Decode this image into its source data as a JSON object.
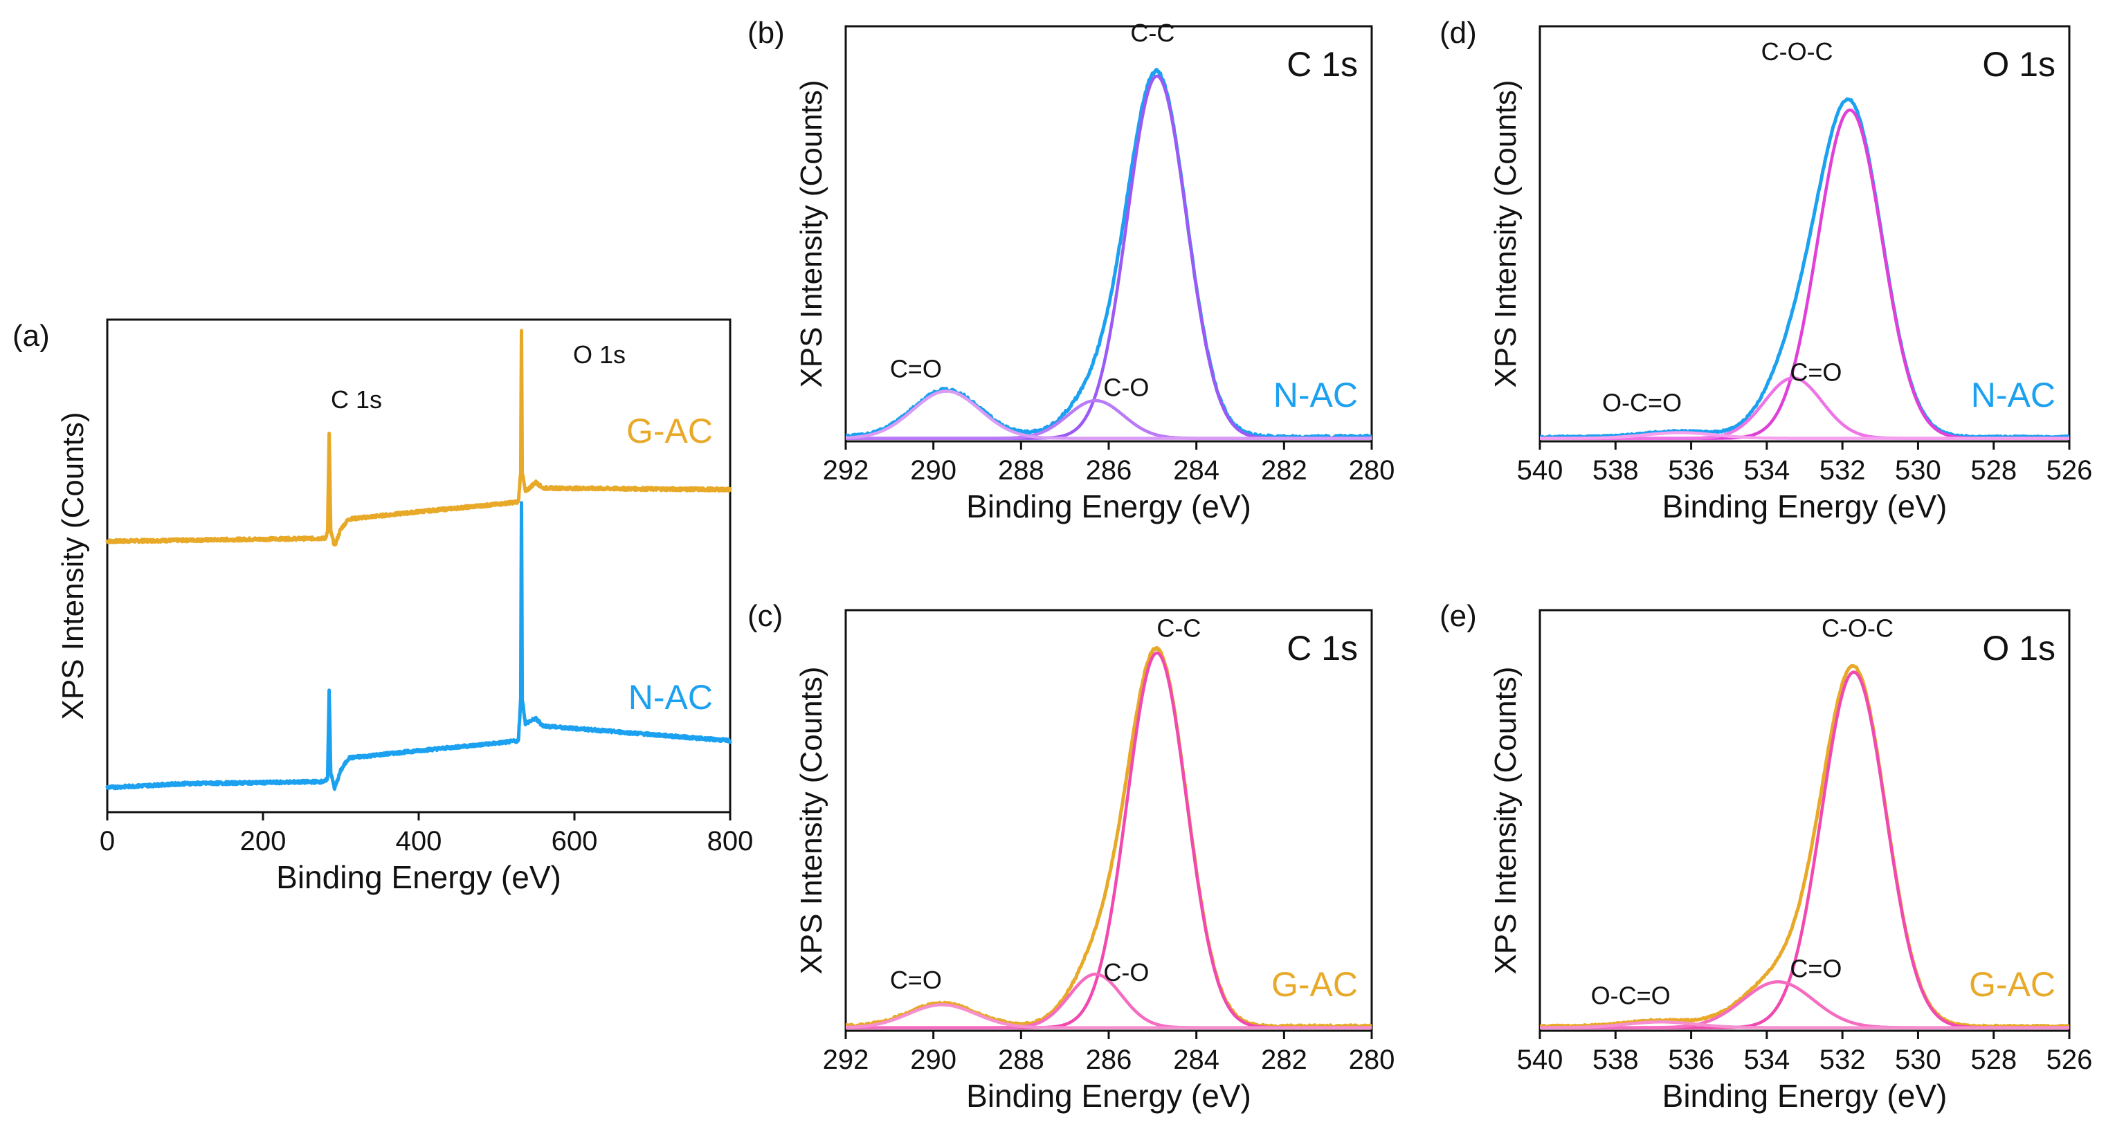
{
  "figure": {
    "type": "xps_multi_panel"
  },
  "chart_data": [
    {
      "panel": "(a)",
      "type": "line",
      "title": "",
      "xlabel": "Binding Energy (eV)",
      "ylabel": "XPS Intensity (Counts)",
      "xlim": [
        0,
        800
      ],
      "x_reversed": false,
      "ylim": [
        0,
        1
      ],
      "x_ticks": [
        0,
        200,
        400,
        600,
        800
      ],
      "peak_labels": [
        {
          "text": "C 1s",
          "x": 285,
          "y": 0.71
        },
        {
          "text": "O 1s",
          "x": 532,
          "y": 0.88
        }
      ],
      "series": [
        {
          "name": "G-AC",
          "color": "#E8A928",
          "offset": 0.55,
          "base": [
            [
              0,
              0
            ],
            [
              280,
              0.006
            ],
            [
              283,
              0.02
            ],
            [
              285,
              0.22
            ],
            [
              287,
              0.02
            ],
            [
              292,
              -0.01
            ],
            [
              300,
              0.025
            ],
            [
              310,
              0.045
            ],
            [
              400,
              0.06
            ],
            [
              500,
              0.075
            ],
            [
              528,
              0.08
            ],
            [
              531,
              0.14
            ],
            [
              532,
              0.43
            ],
            [
              533,
              0.14
            ],
            [
              537,
              0.1
            ],
            [
              550,
              0.12
            ],
            [
              560,
              0.108
            ],
            [
              800,
              0.105
            ]
          ]
        },
        {
          "name": "N-AC",
          "color": "#1BA1F0",
          "offset": 0.05,
          "base": [
            [
              0,
              0
            ],
            [
              100,
              0.008
            ],
            [
              200,
              0.01
            ],
            [
              280,
              0.012
            ],
            [
              283,
              0.02
            ],
            [
              285,
              0.2
            ],
            [
              287,
              0.03
            ],
            [
              292,
              -0.002
            ],
            [
              300,
              0.035
            ],
            [
              310,
              0.06
            ],
            [
              400,
              0.075
            ],
            [
              500,
              0.09
            ],
            [
              528,
              0.095
            ],
            [
              531,
              0.18
            ],
            [
              532,
              0.58
            ],
            [
              533,
              0.18
            ],
            [
              537,
              0.13
            ],
            [
              550,
              0.14
            ],
            [
              560,
              0.125
            ],
            [
              800,
              0.095
            ]
          ]
        }
      ]
    },
    {
      "panel": "(b)",
      "type": "line",
      "title": "C 1s",
      "sample": "N-AC",
      "sample_color": "#1BA1F0",
      "xlabel": "Binding Energy (eV)",
      "ylabel": "XPS Intensity (Counts)",
      "xlim": [
        292,
        280
      ],
      "x_reversed": true,
      "ylim": [
        0,
        1.1
      ],
      "x_ticks": [
        292,
        290,
        288,
        286,
        284,
        282,
        280
      ],
      "peak_labels": [
        {
          "text": "C-C",
          "x": 285.0,
          "y": 1.06
        },
        {
          "text": "C-O",
          "x": 285.6,
          "y": 0.12
        },
        {
          "text": "C=O",
          "x": 290.4,
          "y": 0.17
        }
      ],
      "envelope": {
        "name": "N-AC",
        "color": "#1BA1F0",
        "noise": 0.004
      },
      "components": [
        {
          "name": "C-C",
          "center": 284.9,
          "height": 0.96,
          "fwhm": 1.6,
          "color": "#9B59F5"
        },
        {
          "name": "C-O",
          "center": 286.3,
          "height": 0.1,
          "fwhm": 1.5,
          "color": "#B97AF7"
        },
        {
          "name": "C=O",
          "center": 289.7,
          "height": 0.125,
          "fwhm": 1.8,
          "color": "#D99BF5"
        }
      ]
    },
    {
      "panel": "(c)",
      "type": "line",
      "title": "C 1s",
      "sample": "G-AC",
      "sample_color": "#E8A928",
      "xlabel": "Binding Energy (eV)",
      "ylabel": "XPS Intensity (Counts)",
      "xlim": [
        292,
        280
      ],
      "x_reversed": true,
      "ylim": [
        0,
        1.1
      ],
      "x_ticks": [
        292,
        290,
        288,
        286,
        284,
        282,
        280
      ],
      "peak_labels": [
        {
          "text": "C-C",
          "x": 284.4,
          "y": 1.03
        },
        {
          "text": "C-O",
          "x": 285.6,
          "y": 0.13
        },
        {
          "text": "C=O",
          "x": 290.4,
          "y": 0.11
        }
      ],
      "envelope": {
        "name": "G-AC",
        "color": "#E8A928",
        "noise": 0.003
      },
      "components": [
        {
          "name": "C-C",
          "center": 284.9,
          "height": 0.98,
          "fwhm": 1.6,
          "color": "#F04AB0"
        },
        {
          "name": "C-O",
          "center": 286.3,
          "height": 0.14,
          "fwhm": 1.4,
          "color": "#F56BC0"
        },
        {
          "name": "C=O",
          "center": 289.8,
          "height": 0.06,
          "fwhm": 1.8,
          "color": "#F58FCF"
        }
      ]
    },
    {
      "panel": "(d)",
      "type": "line",
      "title": "O 1s",
      "sample": "N-AC",
      "sample_color": "#1BA1F0",
      "xlabel": "Binding Energy (eV)",
      "ylabel": "XPS Intensity (Counts)",
      "xlim": [
        540,
        526
      ],
      "x_reversed": true,
      "ylim": [
        0,
        1.1
      ],
      "x_ticks": [
        540,
        538,
        536,
        534,
        532,
        530,
        528,
        526
      ],
      "peak_labels": [
        {
          "text": "C-O-C",
          "x": 533.2,
          "y": 1.01
        },
        {
          "text": "C=O",
          "x": 532.7,
          "y": 0.16
        },
        {
          "text": "O-C=O",
          "x": 537.3,
          "y": 0.08
        }
      ],
      "envelope": {
        "name": "N-AC",
        "color": "#1BA1F0",
        "noise": 0.002
      },
      "components": [
        {
          "name": "C-O-C",
          "center": 531.8,
          "height": 0.87,
          "fwhm": 2.0,
          "color": "#E040D8"
        },
        {
          "name": "C=O",
          "center": 533.3,
          "height": 0.16,
          "fwhm": 1.8,
          "color": "#EE74E6"
        },
        {
          "name": "O-C=O",
          "center": 536.3,
          "height": 0.015,
          "fwhm": 2.2,
          "color": "#F5A0EE"
        }
      ]
    },
    {
      "panel": "(e)",
      "type": "line",
      "title": "O 1s",
      "sample": "G-AC",
      "sample_color": "#E8A928",
      "xlabel": "Binding Energy (eV)",
      "ylabel": "XPS Intensity (Counts)",
      "xlim": [
        540,
        526
      ],
      "x_reversed": true,
      "ylim": [
        0,
        1.1
      ],
      "x_ticks": [
        540,
        538,
        536,
        534,
        532,
        530,
        528,
        526
      ],
      "peak_labels": [
        {
          "text": "C-O-C",
          "x": 531.6,
          "y": 1.03
        },
        {
          "text": "C=O",
          "x": 532.7,
          "y": 0.14
        },
        {
          "text": "O-C=O",
          "x": 537.6,
          "y": 0.07
        }
      ],
      "envelope": {
        "name": "G-AC",
        "color": "#E8A928",
        "noise": 0.002
      },
      "components": [
        {
          "name": "C-O-C",
          "center": 531.7,
          "height": 0.93,
          "fwhm": 2.0,
          "color": "#F04AB0"
        },
        {
          "name": "C=O",
          "center": 533.7,
          "height": 0.12,
          "fwhm": 2.2,
          "color": "#F56BC0"
        },
        {
          "name": "O-C=O",
          "center": 536.8,
          "height": 0.015,
          "fwhm": 2.2,
          "color": "#F58FCF"
        }
      ]
    }
  ]
}
